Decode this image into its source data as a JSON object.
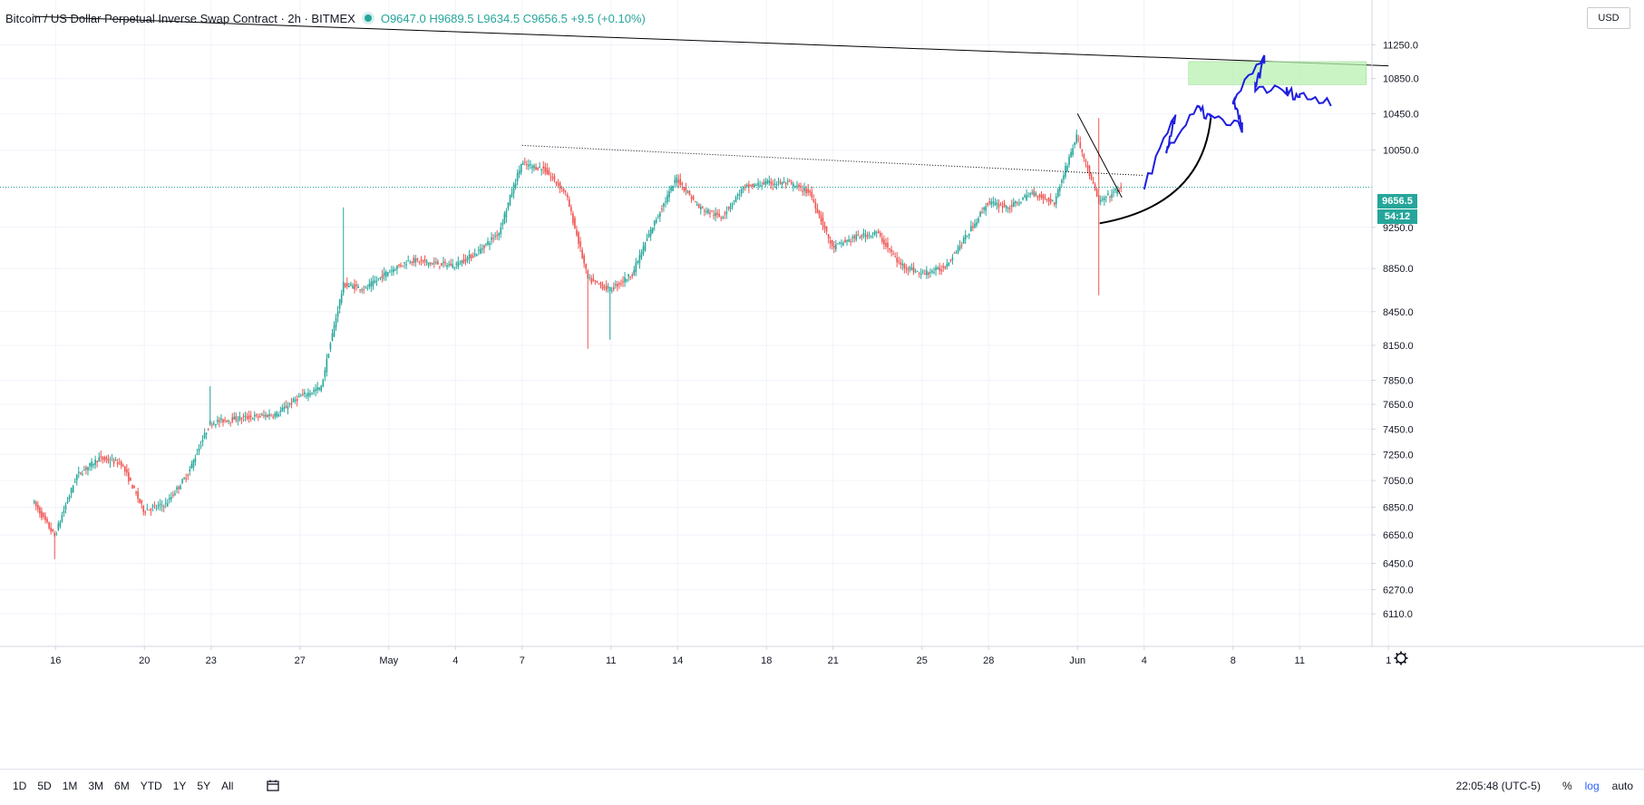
{
  "header": {
    "symbol_title": "Bitcoin / US Dollar Perpetual Inverse Swap Contract · 2h · BITMEX",
    "ohlc": "O9647.0 H9689.5 L9634.5 C9656.5 +9.5 (+0.10%)",
    "currency": "USD"
  },
  "price_scale": {
    "ticks": [
      "6110.0",
      "6270.0",
      "6450.0",
      "6650.0",
      "6850.0",
      "7050.0",
      "7250.0",
      "7450.0",
      "7650.0",
      "7850.0",
      "8150.0",
      "8450.0",
      "8850.0",
      "9250.0",
      "10050.0",
      "10450.0",
      "10850.0",
      "11250.0"
    ],
    "last_price_label": "9656.5",
    "countdown_label": "54:12"
  },
  "time_scale": {
    "ticks": [
      "16",
      "20",
      "23",
      "27",
      "May",
      "4",
      "7",
      "11",
      "14",
      "18",
      "21",
      "25",
      "28",
      "Jun",
      "4",
      "8",
      "11",
      "1"
    ]
  },
  "bottom_toolbar": {
    "ranges": [
      "1D",
      "5D",
      "1M",
      "3M",
      "6M",
      "YTD",
      "1Y",
      "5Y",
      "All"
    ],
    "clock": "22:05:48 (UTC-5)",
    "percent_label": "%",
    "log_label": "log",
    "auto_label": "auto"
  },
  "colors": {
    "up": "#26a69a",
    "down": "#ef5350",
    "projection": "#1e1ee0",
    "trendline": "#000000",
    "target_zone": "#b8f0b0",
    "last_price": "#26a69a"
  },
  "chart_data": {
    "type": "candlestick",
    "title": "Bitcoin / US Dollar Perpetual Inverse Swap Contract · 2h · BITMEX",
    "scale": "log",
    "interval": "2h",
    "x_range": [
      "2020-04-15",
      "2020-06-15"
    ],
    "ylim": [
      6040,
      11600
    ],
    "last": {
      "open": 9647.0,
      "high": 9689.5,
      "low": 9634.5,
      "close": 9656.5,
      "change": 9.5,
      "change_pct": 0.1
    },
    "price_path": [
      [
        "2020-04-15",
        6900
      ],
      [
        "2020-04-16",
        6640
      ],
      [
        "2020-04-17",
        7090
      ],
      [
        "2020-04-18",
        7220
      ],
      [
        "2020-04-19",
        7180
      ],
      [
        "2020-04-20",
        6830
      ],
      [
        "2020-04-21",
        6870
      ],
      [
        "2020-04-22",
        7100
      ],
      [
        "2020-04-23",
        7500
      ],
      [
        "2020-04-24",
        7530
      ],
      [
        "2020-04-25",
        7550
      ],
      [
        "2020-04-26",
        7570
      ],
      [
        "2020-04-27",
        7710
      ],
      [
        "2020-04-28",
        7790
      ],
      [
        "2020-04-29",
        8700
      ],
      [
        "2020-04-30",
        8660
      ],
      [
        "2020-05-01",
        8820
      ],
      [
        "2020-05-02",
        8930
      ],
      [
        "2020-05-03",
        8900
      ],
      [
        "2020-05-04",
        8880
      ],
      [
        "2020-05-05",
        9000
      ],
      [
        "2020-05-06",
        9200
      ],
      [
        "2020-05-07",
        9900
      ],
      [
        "2020-05-08",
        9850
      ],
      [
        "2020-05-09",
        9600
      ],
      [
        "2020-05-10",
        8750
      ],
      [
        "2020-05-11",
        8650
      ],
      [
        "2020-05-12",
        8800
      ],
      [
        "2020-05-13",
        9300
      ],
      [
        "2020-05-14",
        9750
      ],
      [
        "2020-05-15",
        9450
      ],
      [
        "2020-05-16",
        9350
      ],
      [
        "2020-05-17",
        9650
      ],
      [
        "2020-05-18",
        9700
      ],
      [
        "2020-05-19",
        9700
      ],
      [
        "2020-05-20",
        9600
      ],
      [
        "2020-05-21",
        9050
      ],
      [
        "2020-05-22",
        9150
      ],
      [
        "2020-05-23",
        9200
      ],
      [
        "2020-05-24",
        8900
      ],
      [
        "2020-05-25",
        8800
      ],
      [
        "2020-05-26",
        8850
      ],
      [
        "2020-05-27",
        9150
      ],
      [
        "2020-05-28",
        9500
      ],
      [
        "2020-05-29",
        9450
      ],
      [
        "2020-05-30",
        9600
      ],
      [
        "2020-05-31",
        9500
      ],
      [
        "2020-06-01",
        10200
      ],
      [
        "2020-06-02",
        9500
      ],
      [
        "2020-06-03",
        9650
      ]
    ],
    "wicks": [
      {
        "date": "2020-04-16",
        "low": 6480
      },
      {
        "date": "2020-04-23",
        "high": 7800
      },
      {
        "date": "2020-04-29",
        "high": 9450
      },
      {
        "date": "2020-05-10",
        "low": 8120
      },
      {
        "date": "2020-05-11",
        "low": 8200
      },
      {
        "date": "2020-06-02",
        "high": 10400,
        "low": 8600
      }
    ],
    "annotations": {
      "long_trendline": {
        "from": [
          "2020-04-15",
          11600
        ],
        "to": [
          "2020-06-15",
          11000
        ]
      },
      "dotted_resistance": {
        "from": [
          "2020-05-07",
          10100
        ],
        "to": [
          "2020-06-04",
          9780
        ]
      },
      "short_trendline": {
        "from": [
          "2020-06-01",
          10450
        ],
        "to": [
          "2020-06-03",
          9550
        ]
      },
      "curve": {
        "from": [
          "2020-06-02",
          9290
        ],
        "to": [
          "2020-06-07",
          10400
        ]
      },
      "target_zone": {
        "from": [
          "2020-06-06",
          11050
        ],
        "to": [
          "2020-06-14",
          10780
        ]
      },
      "projection": [
        [
          "2020-06-04",
          9670
        ],
        [
          "2020-06-05",
          10400
        ],
        [
          "2020-06-05",
          10050
        ],
        [
          "2020-06-06",
          10500
        ],
        [
          "2020-06-07",
          10400
        ],
        [
          "2020-06-08",
          10300
        ],
        [
          "2020-06-08",
          10600
        ],
        [
          "2020-06-09",
          11080
        ],
        [
          "2020-06-09",
          10750
        ],
        [
          "2020-06-10",
          10700
        ],
        [
          "2020-06-11",
          10650
        ],
        [
          "2020-06-12",
          10600
        ]
      ]
    }
  }
}
